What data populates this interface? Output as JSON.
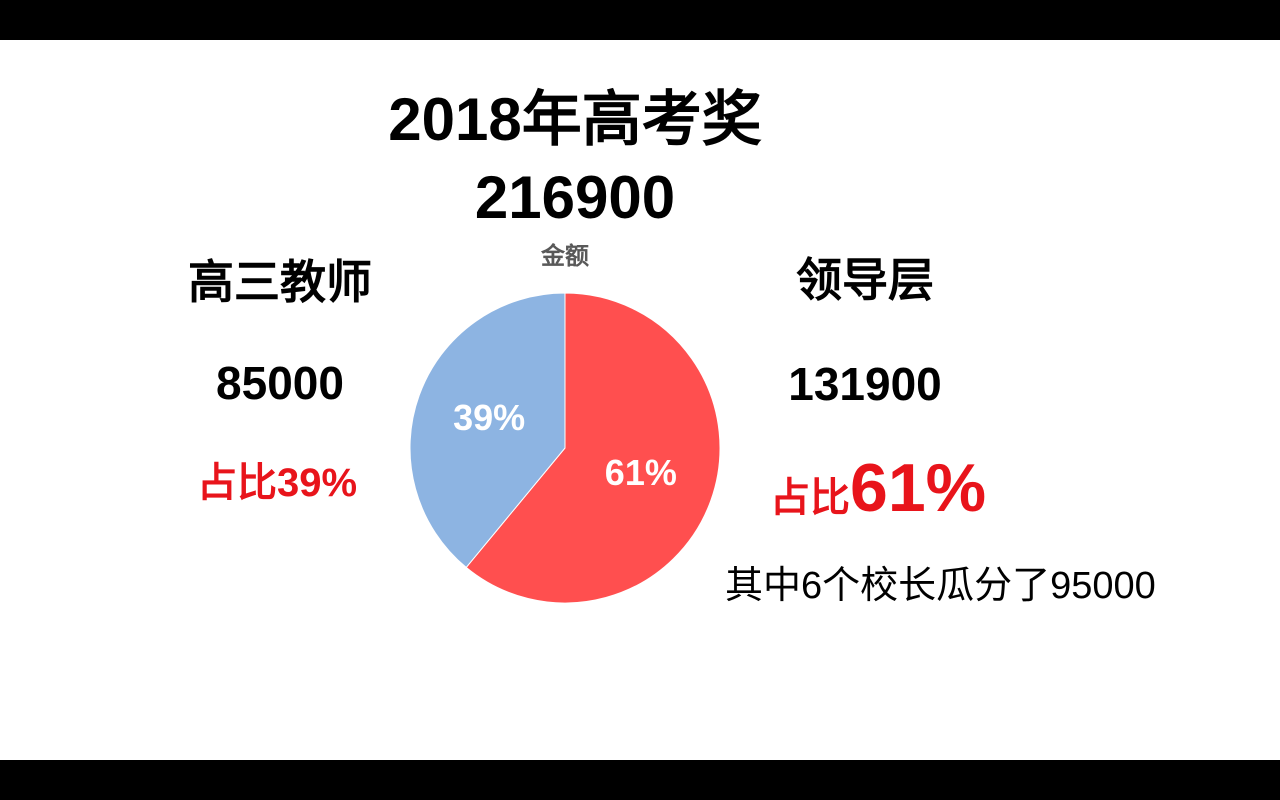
{
  "title": {
    "line1": "2018年高考奖",
    "line2": "216900"
  },
  "left": {
    "name": "高三教师",
    "amount": "85000",
    "share": "占比39%"
  },
  "right": {
    "name": "领导层",
    "amount": "131900",
    "share_prefix": "占比",
    "share_value": "61%",
    "note": "其中6个校长瓜分了95000"
  },
  "colors": {
    "accent_red": "#e8141b",
    "slice_red": "#ff4f4f",
    "slice_blue": "#8db4e2"
  },
  "chart_data": {
    "type": "pie",
    "title": "金额",
    "slices": [
      {
        "label": "61%",
        "value": 61,
        "color": "#ff4f4f"
      },
      {
        "label": "39%",
        "value": 39,
        "color": "#8db4e2"
      }
    ]
  }
}
